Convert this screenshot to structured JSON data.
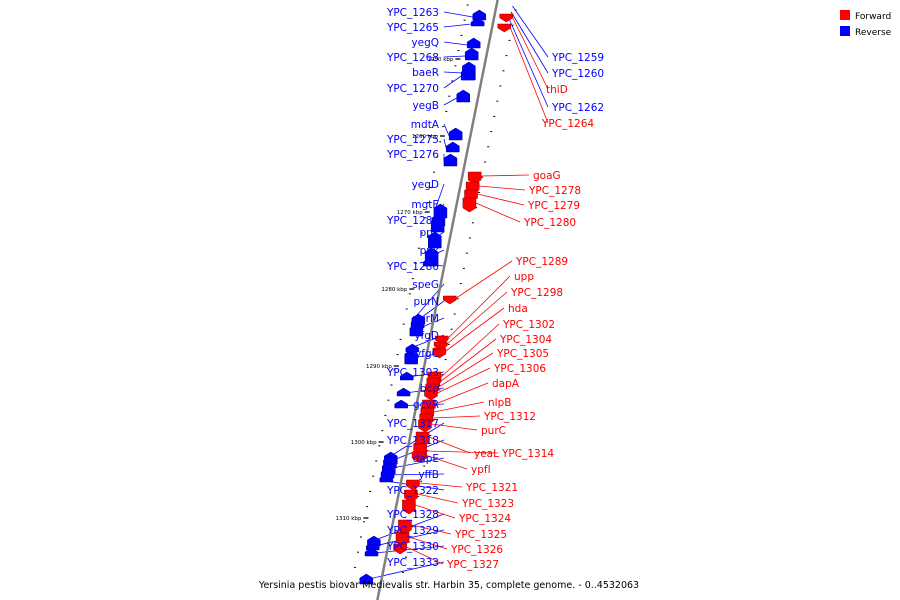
{
  "caption": "Yersinia pestis biovar Medievalis str. Harbin 35, complete genome. - 0..4532063",
  "legend": [
    {
      "label": "Forward",
      "color": "#ff0000"
    },
    {
      "label": "Reverse",
      "color": "#0000ff"
    }
  ],
  "colors": {
    "forward": "#ff0000",
    "reverse": "#0000ff",
    "backbone": "#808080"
  },
  "kbp_markers": [
    "1250 kbp",
    "1260 kbp",
    "1270 kbp",
    "1280 kbp",
    "1290 kbp",
    "1300 kbp",
    "1310 kbp"
  ],
  "reverse_genes": [
    "YPC_1263",
    "YPC_1265",
    "yegQ",
    "YPC_1268",
    "baeR",
    "YPC_1270",
    "yegB",
    "mdtA",
    "YPC_1275",
    "YPC_1276",
    "yegD",
    "mgtE",
    "YPC_1283",
    "ppx",
    "ppk",
    "YPC_1286",
    "speG",
    "purN",
    "purM",
    "yfgD",
    "yfgC",
    "YPC_1303",
    "bcp",
    "gcvR",
    "YPC_1317",
    "YPC_1318",
    "dapE",
    "yffB",
    "YPC_1322",
    "YPC_1328",
    "YPC_1329",
    "YPC_1330",
    "YPC_1333"
  ],
  "forward_top_genes": [
    {
      "name": "YPC_1259",
      "color": "#0000ff"
    },
    {
      "name": "YPC_1260",
      "color": "#0000ff"
    },
    {
      "name": "thiD",
      "color": "#ff0000"
    },
    {
      "name": "YPC_1262",
      "color": "#0000ff"
    },
    {
      "name": "YPC_1264",
      "color": "#ff0000"
    }
  ],
  "forward_genes": [
    "goaG",
    "YPC_1278",
    "YPC_1279",
    "YPC_1280",
    "YPC_1289",
    "upp",
    "YPC_1298",
    "hda",
    "YPC_1302",
    "YPC_1304",
    "YPC_1305",
    "YPC_1306",
    "dapA",
    "nlpB",
    "YPC_1312",
    "purC",
    "yeaL",
    "YPC_1314",
    "ypfI",
    "YPC_1321",
    "YPC_1323",
    "YPC_1324",
    "YPC_1325",
    "YPC_1326",
    "YPC_1327"
  ]
}
